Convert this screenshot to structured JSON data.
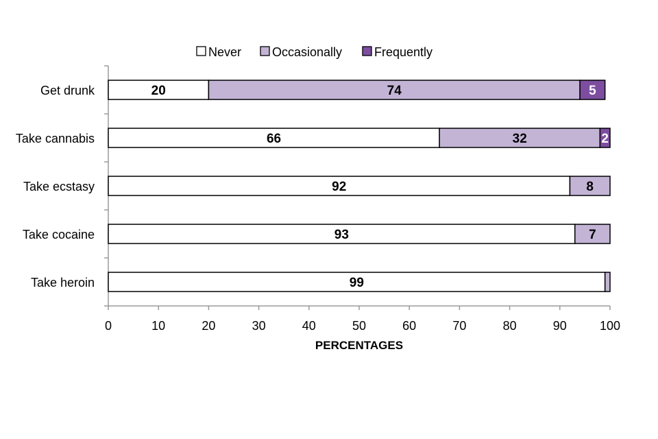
{
  "chart_data": {
    "type": "bar",
    "orientation": "horizontal",
    "stacked": true,
    "categories": [
      "Get drunk",
      "Take cannabis",
      "Take ecstasy",
      "Take cocaine",
      "Take heroin"
    ],
    "series": [
      {
        "name": "Never",
        "values": [
          20,
          66,
          92,
          93,
          99
        ],
        "labels": [
          "20",
          "66",
          "92",
          "93",
          "99"
        ],
        "color": "#ffffff",
        "label_color": "#000000"
      },
      {
        "name": "Occasionally",
        "values": [
          74,
          32,
          8,
          7,
          1
        ],
        "labels": [
          "74",
          "32",
          "8",
          "7",
          ""
        ],
        "color": "#c3b4d6",
        "label_color": "#000000"
      },
      {
        "name": "Frequently",
        "values": [
          5,
          2,
          0,
          0,
          0
        ],
        "labels": [
          "5",
          "2",
          "",
          "",
          ""
        ],
        "color": "#7d4ea0",
        "label_color": "#ffffff"
      }
    ],
    "xlabel": "PERCENTAGES",
    "xlim": [
      0,
      100
    ],
    "xticks": [
      0,
      10,
      20,
      30,
      40,
      50,
      60,
      70,
      80,
      90,
      100
    ],
    "grid": false,
    "legend_position": "top"
  }
}
